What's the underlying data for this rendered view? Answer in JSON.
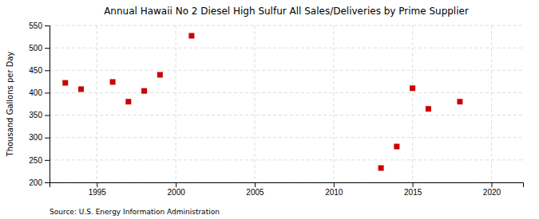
{
  "chart_data": {
    "type": "scatter",
    "title": "Annual Hawaii No 2 Diesel High Sulfur All Sales/Deliveries by Prime Supplier",
    "ylabel": "Thousand Gallons per Day",
    "annotations": [
      "Source: U.S. Energy Information Administration"
    ],
    "x": [
      1993,
      1994,
      1996,
      1997,
      1998,
      1999,
      2001,
      2013,
      2014,
      2015,
      2016,
      2018
    ],
    "values": [
      422,
      408,
      424,
      380,
      404,
      440,
      527,
      232,
      280,
      410,
      364,
      380
    ],
    "color": "#cc0000",
    "marker": "square",
    "xlim": [
      1992,
      2022
    ],
    "ylim": [
      200,
      550
    ],
    "xticks": [
      1995,
      2000,
      2005,
      2010,
      2015,
      2020
    ],
    "yticks": [
      200,
      250,
      300,
      350,
      400,
      450,
      500,
      550
    ],
    "grid": true
  }
}
